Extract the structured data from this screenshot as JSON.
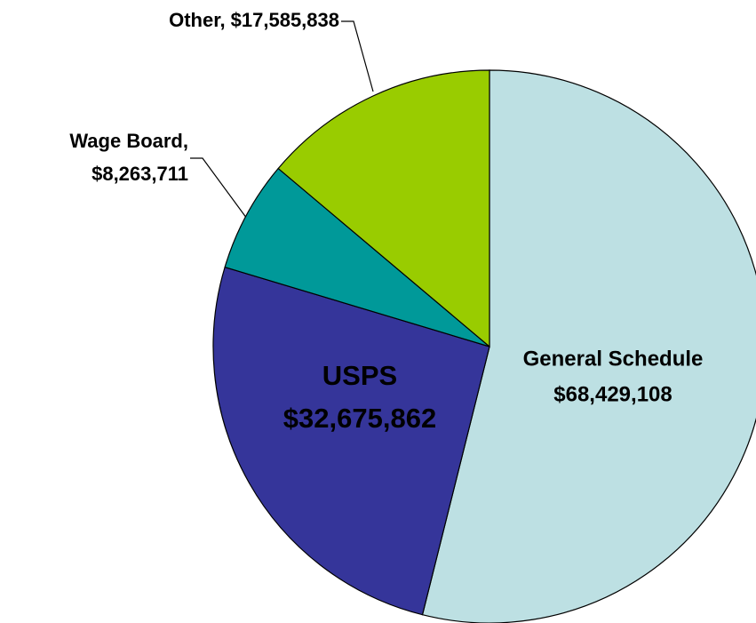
{
  "chart_data": {
    "type": "pie",
    "categories": [
      "General Schedule",
      "USPS",
      "Wage Board,",
      "Other,"
    ],
    "values": [
      68429108,
      32675862,
      8263711,
      17585838
    ],
    "value_labels": [
      "$68,429,108",
      "$32,675,862",
      "$8,263,711",
      "$17,585,838"
    ],
    "colors": [
      "#bde0e3",
      "#35359a",
      "#009999",
      "#99cc00"
    ]
  }
}
